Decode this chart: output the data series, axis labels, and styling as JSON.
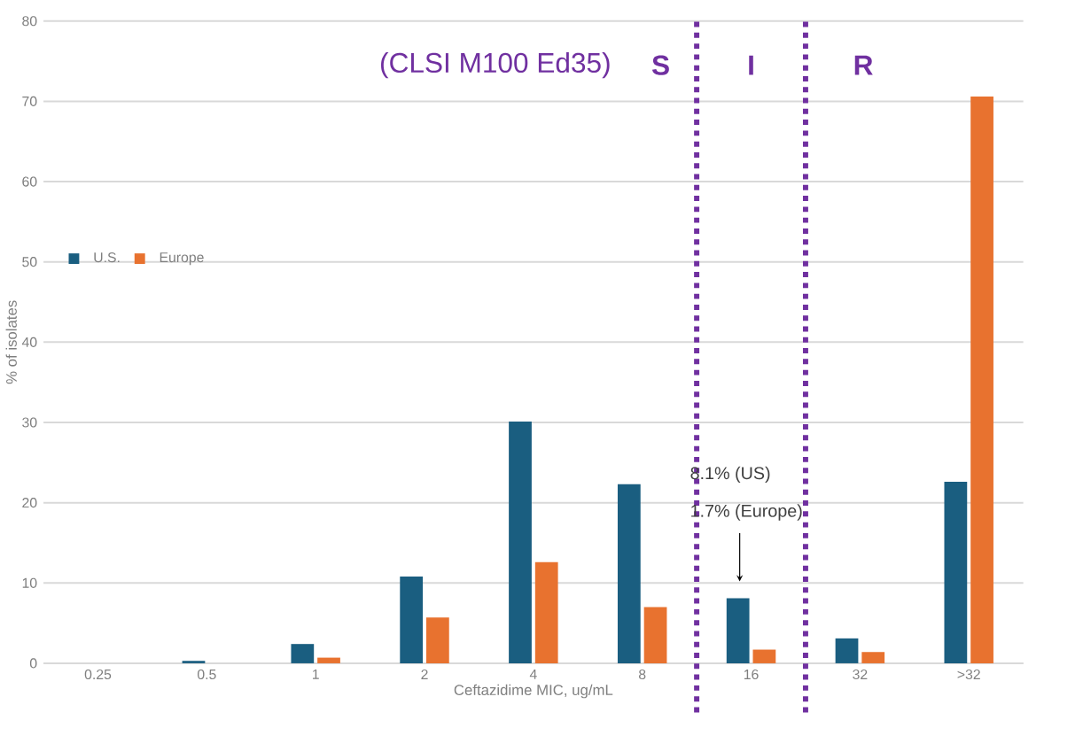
{
  "chart_data": {
    "type": "bar",
    "xlabel": "Ceftazidime MIC, ug/mL",
    "ylabel": "% of isolates",
    "categories": [
      "0.25",
      "0.5",
      "1",
      "2",
      "4",
      "8",
      "16",
      "32",
      ">32"
    ],
    "series": [
      {
        "name": "U.S.",
        "color": "#1a5e80",
        "values": [
          0,
          0.3,
          2.4,
          10.8,
          30.1,
          22.3,
          8.1,
          3.1,
          22.6
        ]
      },
      {
        "name": "Europe",
        "color": "#e8722f",
        "values": [
          0,
          0,
          0.7,
          5.7,
          12.6,
          7.0,
          1.7,
          1.4,
          70.6
        ]
      }
    ],
    "ylim": [
      0,
      80
    ],
    "yticks": [
      0,
      10,
      20,
      30,
      40,
      50,
      60,
      70,
      80
    ],
    "grid": "y",
    "legend": "left",
    "annotations": [
      "(CLSI M100 Ed35)",
      "S",
      "I",
      "R",
      "8.1% (US)",
      "1.7% (Europe)"
    ]
  }
}
